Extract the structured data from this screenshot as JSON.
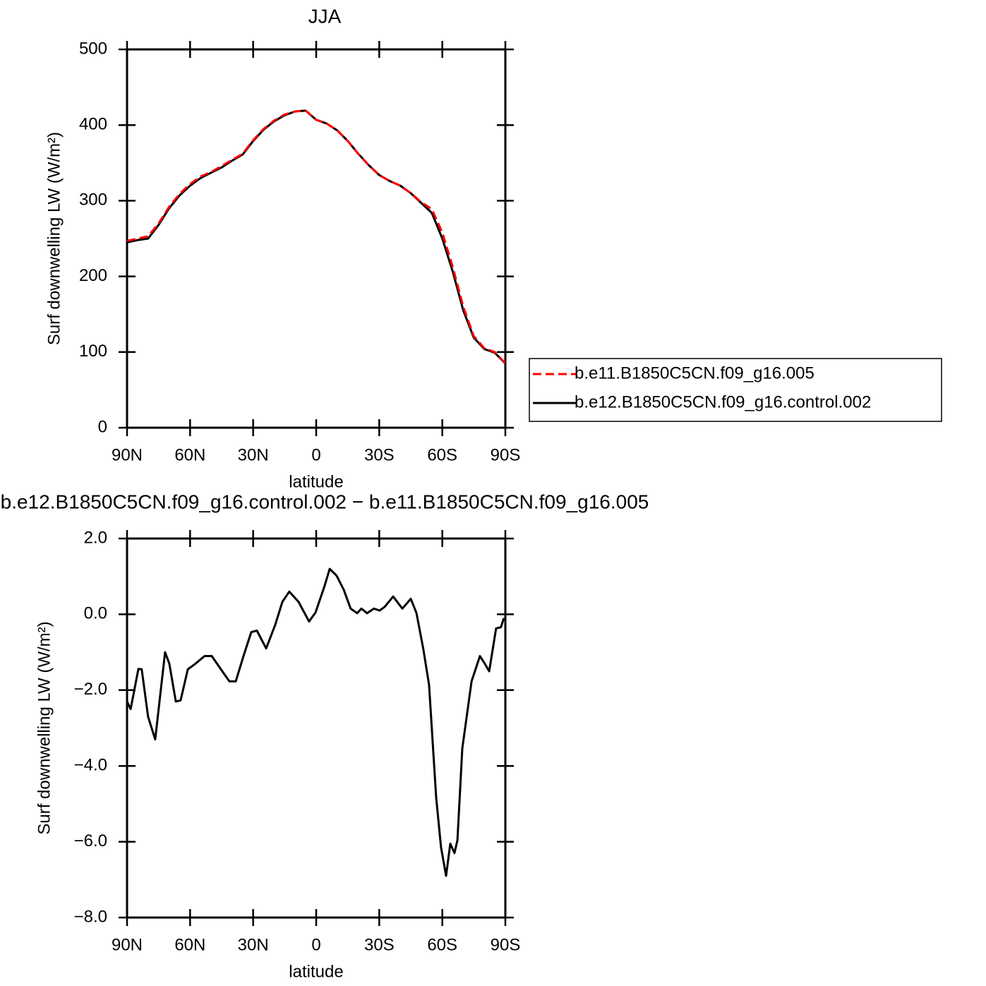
{
  "chart_data": [
    {
      "type": "line",
      "title": "JJA",
      "xlabel": "latitude",
      "ylabel": "Surf downwelling LW (W/m²)",
      "xlim": [
        90,
        -90
      ],
      "xticks": [
        {
          "value": 90,
          "label": "90N"
        },
        {
          "value": 60,
          "label": "60N"
        },
        {
          "value": 30,
          "label": "30N"
        },
        0,
        {
          "value": -30,
          "label": "30S"
        },
        {
          "value": -60,
          "label": "60S"
        },
        {
          "value": -90,
          "label": "90S"
        }
      ],
      "ylim": [
        0,
        500
      ],
      "yticks": [
        0,
        100,
        200,
        300,
        400,
        500
      ],
      "legend": "right",
      "x": [
        90,
        85,
        80,
        75,
        70,
        65,
        60,
        55,
        50,
        45,
        40,
        35,
        30,
        25,
        20,
        15,
        10,
        5,
        0,
        -5,
        -10,
        -15,
        -20,
        -25,
        -30,
        -35,
        -40,
        -45,
        -50,
        -55,
        -60,
        -65,
        -70,
        -75,
        -80,
        -85,
        -90
      ],
      "series": [
        {
          "name": "b.e11.B1850C5CN.f09_g16.005",
          "color": "#ff0000",
          "dash": true,
          "values": [
            247,
            250,
            253,
            270,
            292,
            309,
            322,
            332,
            338,
            346,
            354,
            362,
            380,
            395,
            406,
            414,
            418,
            419,
            407,
            402,
            393,
            379,
            362,
            347,
            334,
            326,
            320,
            310,
            298,
            289,
            258,
            212,
            160,
            121,
            105,
            100,
            85
          ]
        },
        {
          "name": "b.e12.B1850C5CN.f09_g16.control.002",
          "color": "#000000",
          "dash": false,
          "values": [
            245,
            248,
            250,
            268,
            290,
            307,
            320,
            330,
            337,
            344,
            353,
            361,
            379,
            394,
            405,
            413,
            418,
            419,
            407,
            402,
            393,
            379,
            362,
            347,
            334,
            326,
            320,
            310,
            297,
            284,
            250,
            206,
            155,
            119,
            104,
            99,
            85
          ]
        }
      ]
    },
    {
      "type": "line",
      "title": "b.e12.B1850C5CN.f09_g16.control.002 − b.e11.B1850C5CN.f09_g16.005",
      "xlabel": "latitude",
      "ylabel": "Surf downwelling LW (W/m²)",
      "xlim": [
        90,
        -90
      ],
      "xticks": [
        {
          "value": 90,
          "label": "90N"
        },
        {
          "value": 60,
          "label": "60N"
        },
        {
          "value": 30,
          "label": "30N"
        },
        0,
        {
          "value": -30,
          "label": "30S"
        },
        {
          "value": -60,
          "label": "60S"
        },
        {
          "value": -90,
          "label": "90S"
        }
      ],
      "ylim": [
        -8,
        2
      ],
      "yticks": [
        {
          "value": 2,
          "label": "2.0"
        },
        {
          "value": 0,
          "label": "0.0"
        },
        {
          "value": -2,
          "label": "−2.0"
        },
        {
          "value": -4,
          "label": "−4.0"
        },
        {
          "value": -6,
          "label": "−6.0"
        },
        {
          "value": -8,
          "label": "−8.0"
        }
      ],
      "x": [
        90,
        88.3,
        84.6,
        83,
        80,
        76.6,
        71.9,
        69.9,
        66.8,
        64.5,
        61.1,
        57.4,
        53.1,
        49.7,
        44.7,
        41.3,
        38.3,
        34.6,
        30.9,
        28.2,
        23.8,
        19.5,
        16.1,
        12.8,
        8.4,
        3.4,
        0.3,
        -4,
        -6.4,
        -9.7,
        -13.1,
        -16.4,
        -19.5,
        -21.5,
        -24.2,
        -27.5,
        -30.2,
        -32.6,
        -36.6,
        -41,
        -45,
        -47.7,
        -51,
        -53.7,
        -57.1,
        -59.4,
        -61.8,
        -63.8,
        -65.8,
        -67.2,
        -69.5,
        -73.9,
        -77.9,
        -80.2,
        -82.3,
        -85.6,
        -87.9,
        -89.3
      ],
      "color": "#000000",
      "values": [
        -2.3,
        -2.5,
        -1.44,
        -1.45,
        -2.7,
        -3.3,
        -1.0,
        -1.3,
        -2.3,
        -2.27,
        -1.45,
        -1.3,
        -1.1,
        -1.1,
        -1.5,
        -1.77,
        -1.77,
        -1.1,
        -0.47,
        -0.43,
        -0.9,
        -0.28,
        0.33,
        0.6,
        0.33,
        -0.19,
        0.05,
        0.75,
        1.2,
        1.02,
        0.65,
        0.15,
        0.03,
        0.15,
        0.03,
        0.15,
        0.1,
        0.2,
        0.47,
        0.15,
        0.41,
        0.04,
        -0.93,
        -1.86,
        -4.84,
        -6.15,
        -6.9,
        -6.05,
        -6.3,
        -5.96,
        -3.54,
        -1.77,
        -1.1,
        -1.3,
        -1.5,
        -0.37,
        -0.34,
        -0.1
      ]
    }
  ]
}
